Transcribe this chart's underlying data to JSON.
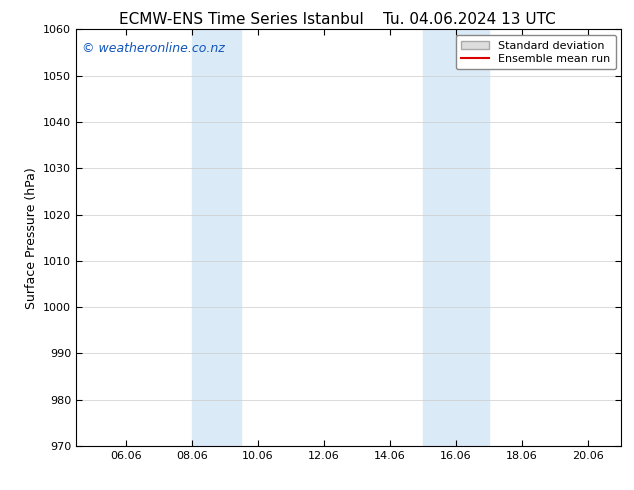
{
  "title": "ECMW-ENS Time Series Istanbul",
  "title2": "Tu. 04.06.2024 13 UTC",
  "ylabel": "Surface Pressure (hPa)",
  "ylim": [
    970,
    1060
  ],
  "yticks": [
    970,
    980,
    990,
    1000,
    1010,
    1020,
    1030,
    1040,
    1050,
    1060
  ],
  "xlim_start": 4.5,
  "xlim_end": 21.0,
  "xtick_labels": [
    "06.06",
    "08.06",
    "10.06",
    "12.06",
    "14.06",
    "16.06",
    "18.06",
    "20.06"
  ],
  "xtick_positions": [
    6,
    8,
    10,
    12,
    14,
    16,
    18,
    20
  ],
  "shaded_bands": [
    {
      "x_start": 8.0,
      "x_end": 9.5
    },
    {
      "x_start": 15.0,
      "x_end": 17.0
    }
  ],
  "shade_color": "#daeaf7",
  "watermark_text": "© weatheronline.co.nz",
  "watermark_color": "#1155bb",
  "legend_std_label": "Standard deviation",
  "legend_mean_label": "Ensemble mean run",
  "legend_std_facecolor": "#dddddd",
  "legend_std_edgecolor": "#aaaaaa",
  "legend_mean_color": "#dd0000",
  "bg_color": "#ffffff",
  "tick_color": "#000000",
  "grid_color": "#cccccc",
  "font_size_title": 11,
  "font_size_axis_label": 9,
  "font_size_tick": 8,
  "font_size_watermark": 9,
  "font_size_legend": 8
}
